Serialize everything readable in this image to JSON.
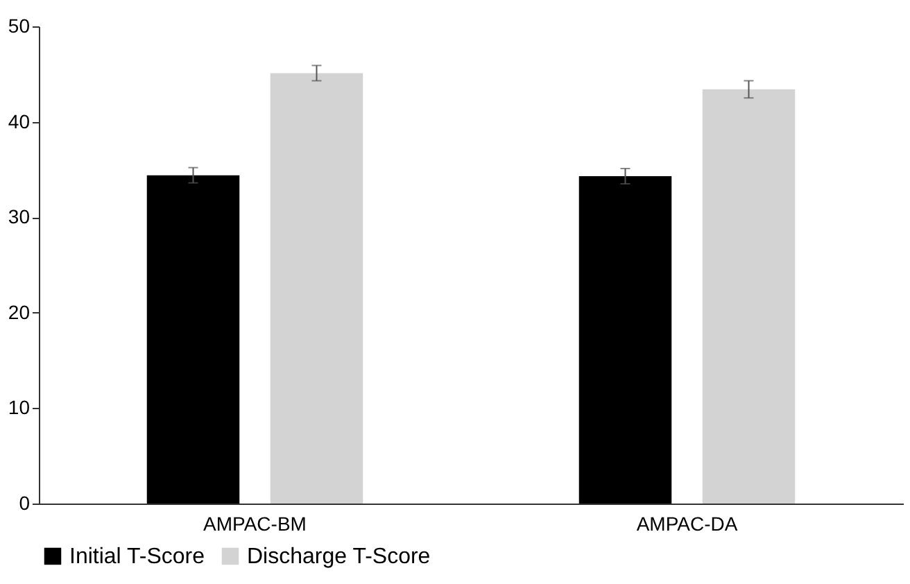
{
  "chart_data": {
    "type": "bar",
    "categories": [
      "AMPAC-BM",
      "AMPAC-DA"
    ],
    "series": [
      {
        "name": "Initial T-Score",
        "color": "#000000",
        "values": [
          34.4,
          34.3
        ],
        "errors": [
          0.8,
          0.8
        ]
      },
      {
        "name": "Discharge T-Score",
        "color": "#d3d3d3",
        "values": [
          45.1,
          43.4
        ],
        "errors": [
          0.8,
          0.9
        ]
      }
    ],
    "ylim": [
      0,
      50
    ],
    "yticks": [
      0,
      10,
      20,
      30,
      40,
      50
    ],
    "grid": false,
    "legend": "bottom"
  }
}
